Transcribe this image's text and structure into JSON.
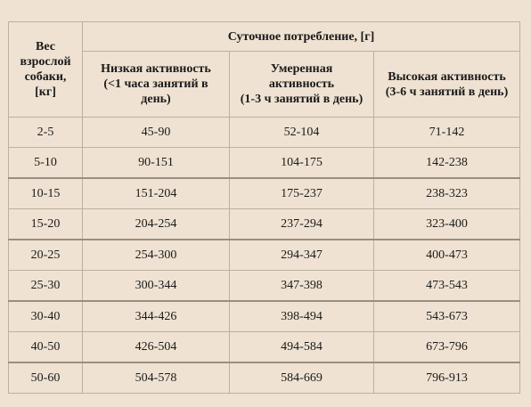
{
  "table": {
    "weight_header_lines": [
      "Вес",
      "взрослой",
      "собаки,",
      "[кг]"
    ],
    "daily_header": "Суточное потребление, [г]",
    "activity_headers": [
      {
        "lines": [
          "Низкая активность",
          "(<1 часа занятий в",
          "день)"
        ]
      },
      {
        "lines": [
          "Умеренная",
          "активность",
          "(1-3 ч занятий в день)"
        ]
      },
      {
        "lines": [
          "Высокая активность",
          "(3-6 ч занятий в день)"
        ]
      }
    ],
    "rows": [
      [
        "2-5",
        "45-90",
        "52-104",
        "71-142"
      ],
      [
        "5-10",
        "90-151",
        "104-175",
        "142-238"
      ],
      [
        "10-15",
        "151-204",
        "175-237",
        "238-323"
      ],
      [
        "15-20",
        "204-254",
        "237-294",
        "323-400"
      ],
      [
        "20-25",
        "254-300",
        "294-347",
        "400-473"
      ],
      [
        "25-30",
        "300-344",
        "347-398",
        "473-543"
      ],
      [
        "30-40",
        "344-426",
        "398-494",
        "543-673"
      ],
      [
        "40-50",
        "426-504",
        "494-584",
        "673-796"
      ],
      [
        "50-60",
        "504-578",
        "584-669",
        "796-913"
      ]
    ]
  }
}
